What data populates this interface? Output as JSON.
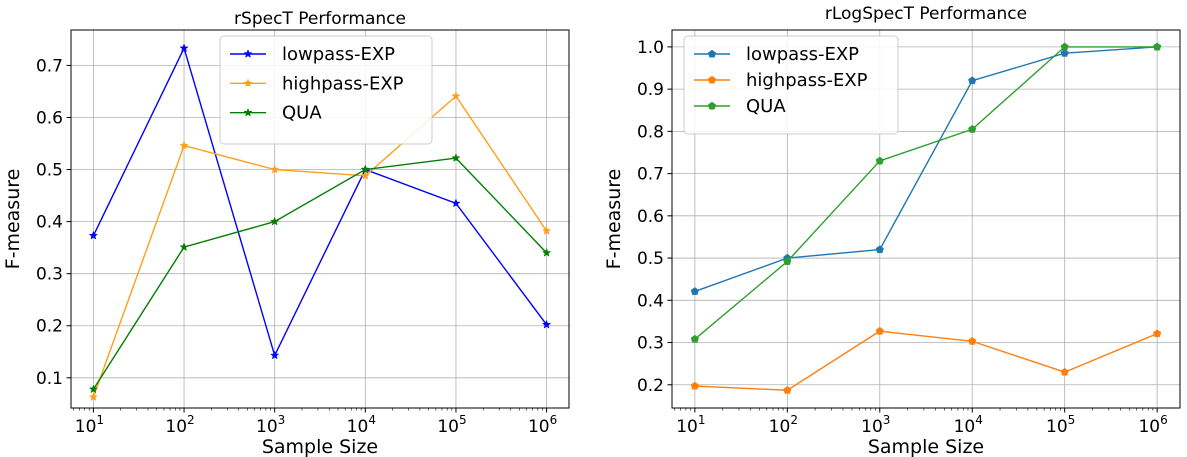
{
  "chart_data": [
    {
      "type": "line",
      "title": "rSpecT Performance",
      "xlabel": "Sample Size",
      "ylabel": "F-measure",
      "xscale": "log",
      "x": [
        10,
        100,
        1000,
        10000,
        100000,
        1000000
      ],
      "xtick_labels": [
        {
          "base": "10",
          "exp": "1"
        },
        {
          "base": "10",
          "exp": "2"
        },
        {
          "base": "10",
          "exp": "3"
        },
        {
          "base": "10",
          "exp": "4"
        },
        {
          "base": "10",
          "exp": "5"
        },
        {
          "base": "10",
          "exp": "6"
        }
      ],
      "yticks": [
        0.1,
        0.2,
        0.3,
        0.4,
        0.5,
        0.6,
        0.7
      ],
      "ytick_labels": [
        "0.1",
        "0.2",
        "0.3",
        "0.4",
        "0.5",
        "0.6",
        "0.7"
      ],
      "ylim": [
        0.042,
        0.768
      ],
      "grid": true,
      "legend": "upper-center",
      "marker": "star",
      "series": [
        {
          "name": "lowpass-EXP",
          "color": "#0000ff",
          "values": [
            0.373,
            0.733,
            0.143,
            0.5,
            0.435,
            0.202
          ]
        },
        {
          "name": "highpass-EXP",
          "color": "#ff9f1c",
          "values": [
            0.063,
            0.546,
            0.5,
            0.488,
            0.641,
            0.382
          ]
        },
        {
          "name": "QUA",
          "color": "#007f00",
          "values": [
            0.078,
            0.351,
            0.4,
            0.5,
            0.522,
            0.34
          ]
        }
      ]
    },
    {
      "type": "line",
      "title": "rLogSpecT Performance",
      "xlabel": "Sample Size",
      "ylabel": "F-measure",
      "xscale": "log",
      "x": [
        10,
        100,
        1000,
        10000,
        100000,
        1000000
      ],
      "xtick_labels": [
        {
          "base": "10",
          "exp": "1"
        },
        {
          "base": "10",
          "exp": "2"
        },
        {
          "base": "10",
          "exp": "3"
        },
        {
          "base": "10",
          "exp": "4"
        },
        {
          "base": "10",
          "exp": "5"
        },
        {
          "base": "10",
          "exp": "6"
        }
      ],
      "yticks": [
        0.2,
        0.3,
        0.4,
        0.5,
        0.6,
        0.7,
        0.8,
        0.9,
        1.0
      ],
      "ytick_labels": [
        "0.2",
        "0.3",
        "0.4",
        "0.5",
        "0.6",
        "0.7",
        "0.8",
        "0.9",
        "1.0"
      ],
      "ylim": [
        0.145,
        1.04
      ],
      "grid": true,
      "legend": "upper-left",
      "marker": "pentagon",
      "series": [
        {
          "name": "lowpass-EXP",
          "color": "#1f77b4",
          "values": [
            0.421,
            0.5,
            0.52,
            0.92,
            0.985,
            1.0
          ]
        },
        {
          "name": "highpass-EXP",
          "color": "#ff7f0e",
          "values": [
            0.197,
            0.187,
            0.327,
            0.303,
            0.23,
            0.321
          ]
        },
        {
          "name": "QUA",
          "color": "#2ca02c",
          "values": [
            0.308,
            0.492,
            0.73,
            0.805,
            1.0,
            1.0
          ]
        }
      ]
    }
  ]
}
